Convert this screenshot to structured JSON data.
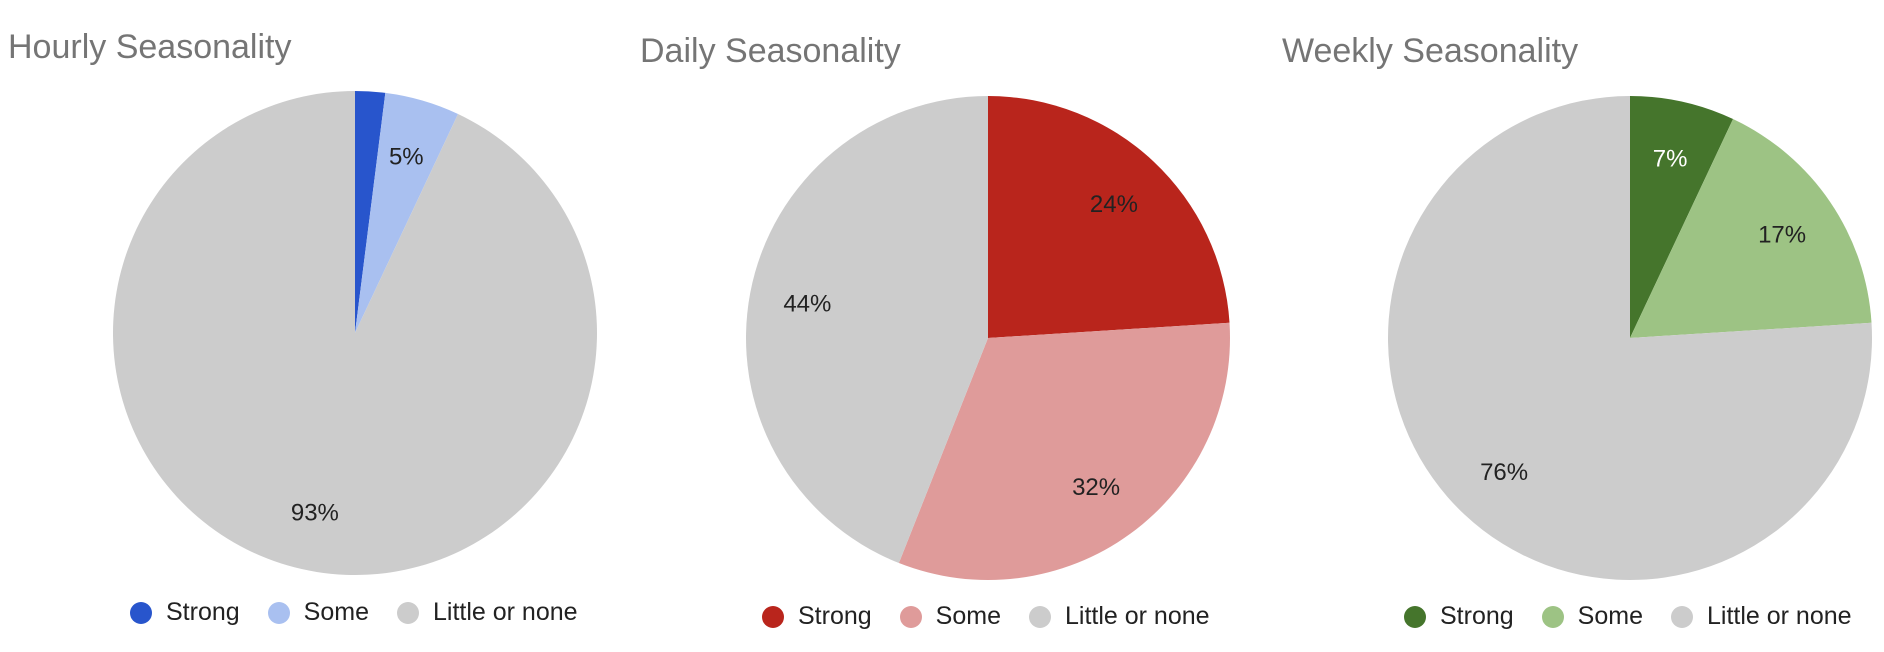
{
  "chart_data": [
    {
      "type": "pie",
      "title": "Hourly Seasonality",
      "labels": [
        "Strong",
        "Some",
        "Little or none"
      ],
      "values": [
        2,
        5,
        93
      ],
      "slice_labels": [
        "",
        "5%",
        "93%"
      ],
      "colors": [
        "#2855cc",
        "#a9c0f0",
        "#cccccc"
      ],
      "label_colors": [
        "#ffffff",
        "#222222",
        "#222222"
      ],
      "legend_position": "bottom"
    },
    {
      "type": "pie",
      "title": "Daily Seasonality",
      "labels": [
        "Strong",
        "Some",
        "Little or none"
      ],
      "values": [
        24,
        32,
        44
      ],
      "slice_labels": [
        "24%",
        "32%",
        "44%"
      ],
      "colors": [
        "#b9251c",
        "#df9b9a",
        "#cccccc"
      ],
      "label_colors": [
        "#222222",
        "#222222",
        "#222222"
      ],
      "legend_position": "bottom"
    },
    {
      "type": "pie",
      "title": "Weekly Seasonality",
      "labels": [
        "Strong",
        "Some",
        "Little or none"
      ],
      "values": [
        7,
        17,
        76
      ],
      "slice_labels": [
        "7%",
        "17%",
        "76%"
      ],
      "colors": [
        "#45752c",
        "#9dc384",
        "#cccccc"
      ],
      "label_colors": [
        "#ffffff",
        "#222222",
        "#222222"
      ],
      "legend_position": "bottom"
    }
  ]
}
